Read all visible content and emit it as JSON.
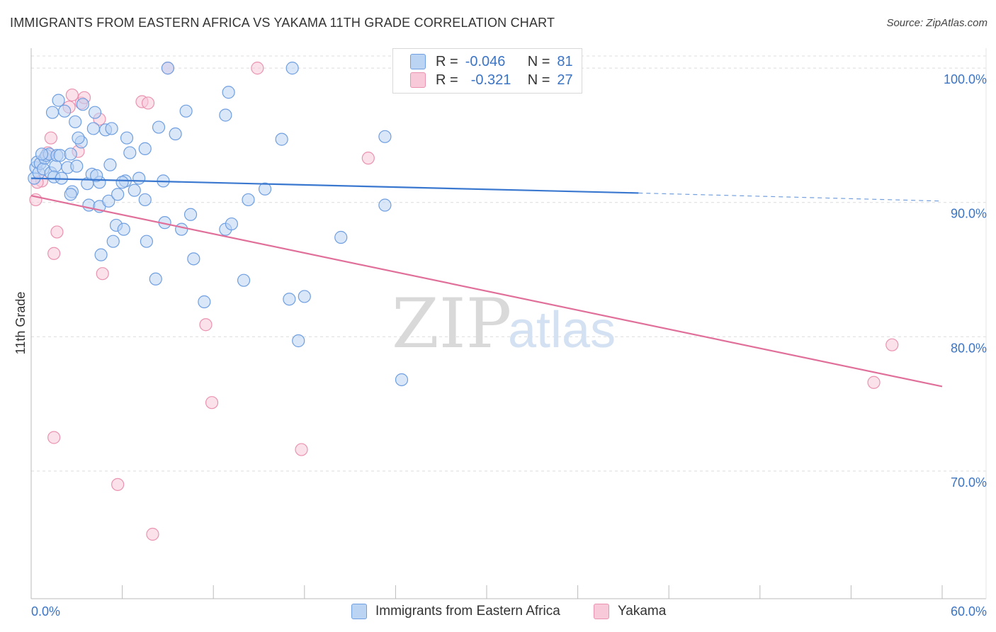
{
  "title": "IMMIGRANTS FROM EASTERN AFRICA VS YAKAMA 11TH GRADE CORRELATION CHART",
  "source": "Source: ZipAtlas.com",
  "watermark": {
    "zip": "ZIP",
    "atlas": "atlas"
  },
  "legend_top": {
    "row1": {
      "r_label": "R =",
      "r_value": "-0.046",
      "n_label": "N =",
      "n_value": "81"
    },
    "row2": {
      "r_label": "R =",
      "r_value": "-0.321",
      "n_label": "N =",
      "n_value": "27"
    }
  },
  "legend_bottom": {
    "series1": "Immigrants from Eastern Africa",
    "series2": "Yakama"
  },
  "colors": {
    "blue_fill": "#bcd4f4",
    "blue_stroke": "#6f9fe0",
    "blue_line": "#3a78d0",
    "pink_fill": "#f8c9d8",
    "pink_stroke": "#ea93b0",
    "pink_line": "#e0709a",
    "grid": "#dcdcdc",
    "axis_text": "#3c74c4"
  },
  "chart_data": {
    "type": "scatter",
    "title": "IMMIGRANTS FROM EASTERN AFRICA VS YAKAMA 11TH GRADE CORRELATION CHART",
    "xlabel": "",
    "ylabel": "11th Grade",
    "xlim": [
      0,
      60
    ],
    "ylim": [
      60.5,
      101.8
    ],
    "x_tick_labels": [
      "0.0%",
      "60.0%"
    ],
    "y_ticks": [
      70,
      80,
      90,
      100
    ],
    "y_tick_labels": [
      "70.0%",
      "80.0%",
      "90.0%",
      "100.0%"
    ],
    "series": [
      {
        "name": "Immigrants from Eastern Africa",
        "trend": {
          "x0": 0,
          "y0": 91.8,
          "x1": 40,
          "y1": 90.7,
          "dashed_to_x": 60,
          "dashed_to_y": 90.1
        },
        "points": [
          [
            0.2,
            91.8
          ],
          [
            0.3,
            92.6
          ],
          [
            0.4,
            93.0
          ],
          [
            0.5,
            92.2
          ],
          [
            0.6,
            92.9
          ],
          [
            0.8,
            92.5
          ],
          [
            0.9,
            93.3
          ],
          [
            1.0,
            93.5
          ],
          [
            1.2,
            93.6
          ],
          [
            1.3,
            92.2
          ],
          [
            1.6,
            92.7
          ],
          [
            1.7,
            93.5
          ],
          [
            1.9,
            93.5
          ],
          [
            2.4,
            92.6
          ],
          [
            2.6,
            93.6
          ],
          [
            3.0,
            92.7
          ],
          [
            3.7,
            91.4
          ],
          [
            4.0,
            92.1
          ],
          [
            4.5,
            91.5
          ],
          [
            4.1,
            95.5
          ],
          [
            3.3,
            94.5
          ],
          [
            3.1,
            94.8
          ],
          [
            4.9,
            95.4
          ],
          [
            5.3,
            95.5
          ],
          [
            6.3,
            94.8
          ],
          [
            6.5,
            93.7
          ],
          [
            5.2,
            92.8
          ],
          [
            4.3,
            92.0
          ],
          [
            7.5,
            94.0
          ],
          [
            8.4,
            95.6
          ],
          [
            9.5,
            95.1
          ],
          [
            10.2,
            96.8
          ],
          [
            8.7,
            91.6
          ],
          [
            2.7,
            90.8
          ],
          [
            2.6,
            90.6
          ],
          [
            3.8,
            89.8
          ],
          [
            4.5,
            89.7
          ],
          [
            5.1,
            90.1
          ],
          [
            5.7,
            90.6
          ],
          [
            6.8,
            90.9
          ],
          [
            7.5,
            90.2
          ],
          [
            7.6,
            87.1
          ],
          [
            5.4,
            87.1
          ],
          [
            5.6,
            88.3
          ],
          [
            6.1,
            88.0
          ],
          [
            4.6,
            86.1
          ],
          [
            8.8,
            88.5
          ],
          [
            9.9,
            88.0
          ],
          [
            10.5,
            89.1
          ],
          [
            10.7,
            85.8
          ],
          [
            11.4,
            82.6
          ],
          [
            8.2,
            84.3
          ],
          [
            12.8,
            88.0
          ],
          [
            13.2,
            88.4
          ],
          [
            14.0,
            84.2
          ],
          [
            14.3,
            90.2
          ],
          [
            15.4,
            91.0
          ],
          [
            13.0,
            98.2
          ],
          [
            12.8,
            96.5
          ],
          [
            16.5,
            94.7
          ],
          [
            17.0,
            82.8
          ],
          [
            17.6,
            79.7
          ],
          [
            18.0,
            83.0
          ],
          [
            20.4,
            87.4
          ],
          [
            23.3,
            94.9
          ],
          [
            23.3,
            89.8
          ],
          [
            24.4,
            76.8
          ],
          [
            17.2,
            100.0
          ],
          [
            9.0,
            100.0
          ],
          [
            6.2,
            91.6
          ],
          [
            7.1,
            91.8
          ],
          [
            6.0,
            91.5
          ],
          [
            3.4,
            97.3
          ],
          [
            2.2,
            96.8
          ],
          [
            1.8,
            97.6
          ],
          [
            1.4,
            96.7
          ],
          [
            2.9,
            96.0
          ],
          [
            4.2,
            96.7
          ],
          [
            0.7,
            93.6
          ],
          [
            1.5,
            91.9
          ],
          [
            2.0,
            91.8
          ]
        ]
      },
      {
        "name": "Yakama",
        "trend": {
          "x0": 0,
          "y0": 90.5,
          "x1": 60,
          "y1": 76.3
        },
        "points": [
          [
            0.3,
            90.2
          ],
          [
            0.7,
            91.6
          ],
          [
            1.1,
            93.7
          ],
          [
            1.3,
            94.8
          ],
          [
            2.5,
            97.1
          ],
          [
            2.7,
            98.0
          ],
          [
            3.3,
            97.4
          ],
          [
            3.5,
            97.8
          ],
          [
            3.1,
            93.8
          ],
          [
            4.5,
            96.2
          ],
          [
            7.3,
            97.5
          ],
          [
            7.7,
            97.4
          ],
          [
            1.5,
            72.5
          ],
          [
            1.7,
            87.8
          ],
          [
            1.5,
            86.2
          ],
          [
            4.7,
            84.7
          ],
          [
            5.7,
            69.0
          ],
          [
            8.0,
            65.3
          ],
          [
            11.5,
            80.9
          ],
          [
            11.9,
            75.1
          ],
          [
            17.8,
            71.6
          ],
          [
            22.2,
            93.3
          ],
          [
            9.0,
            100.0
          ],
          [
            14.9,
            100.0
          ],
          [
            56.7,
            79.4
          ],
          [
            55.5,
            76.6
          ],
          [
            0.4,
            91.5
          ]
        ]
      }
    ]
  }
}
